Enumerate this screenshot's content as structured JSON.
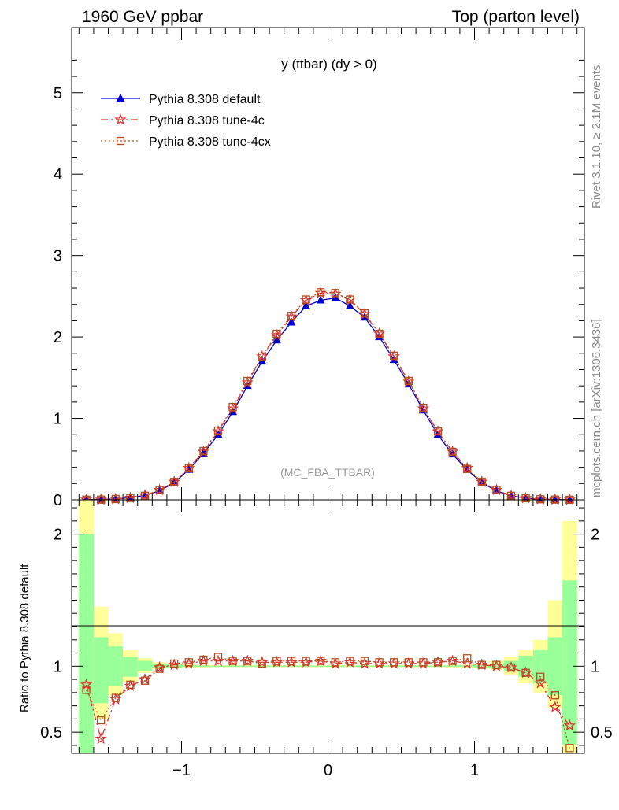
{
  "header": {
    "left": "1960 GeV ppbar",
    "right": "Top (parton level)"
  },
  "side": {
    "rivet": "Rivet 3.1.10, ≥ 2.1M events",
    "mcplots": "mcplots.cern.ch [arXiv:1306.3436]"
  },
  "chart_data": [
    {
      "type": "line",
      "title": "y (ttbar) (dy > 0)",
      "watermark": "(MC_FBA_TTBAR)",
      "xlim": [
        -1.75,
        1.75
      ],
      "ylim": [
        0,
        5.8
      ],
      "yticks": [
        "0",
        "1",
        "2",
        "3",
        "4",
        "5"
      ],
      "x": [
        -1.65,
        -1.55,
        -1.45,
        -1.35,
        -1.25,
        -1.15,
        -1.05,
        -0.95,
        -0.85,
        -0.75,
        -0.65,
        -0.55,
        -0.45,
        -0.35,
        -0.25,
        -0.15,
        -0.05,
        0.05,
        0.15,
        0.25,
        0.35,
        0.45,
        0.55,
        0.65,
        0.75,
        0.85,
        0.95,
        1.05,
        1.15,
        1.25,
        1.35,
        1.45,
        1.55,
        1.65
      ],
      "series": [
        {
          "name": "Pythia 8.308 default",
          "color": "#0000cc",
          "marker": "triangle",
          "values": [
            0.002,
            0.005,
            0.012,
            0.025,
            0.055,
            0.11,
            0.21,
            0.37,
            0.57,
            0.8,
            1.08,
            1.4,
            1.7,
            1.96,
            2.18,
            2.38,
            2.45,
            2.48,
            2.38,
            2.24,
            2.0,
            1.72,
            1.42,
            1.1,
            0.8,
            0.56,
            0.37,
            0.21,
            0.11,
            0.05,
            0.02,
            0.008,
            0.003,
            0.001
          ]
        },
        {
          "name": "Pythia 8.308 tune-4c",
          "color": "#e03030",
          "marker": "star",
          "values": [
            0.002,
            0.002,
            0.01,
            0.023,
            0.055,
            0.12,
            0.22,
            0.39,
            0.59,
            0.84,
            1.12,
            1.44,
            1.76,
            2.02,
            2.25,
            2.45,
            2.54,
            2.53,
            2.46,
            2.28,
            2.04,
            1.76,
            1.45,
            1.12,
            0.84,
            0.59,
            0.39,
            0.22,
            0.12,
            0.05,
            0.02,
            0.008,
            0.003,
            0.001
          ]
        },
        {
          "name": "Pythia 8.308 tune-4cx",
          "color": "#b05020",
          "marker": "square",
          "values": [
            0.002,
            0.003,
            0.01,
            0.023,
            0.05,
            0.12,
            0.22,
            0.39,
            0.6,
            0.85,
            1.14,
            1.46,
            1.76,
            2.04,
            2.26,
            2.46,
            2.55,
            2.54,
            2.46,
            2.29,
            2.04,
            1.77,
            1.46,
            1.13,
            0.84,
            0.59,
            0.38,
            0.22,
            0.12,
            0.05,
            0.02,
            0.007,
            0.003,
            0.001
          ]
        }
      ]
    },
    {
      "type": "line",
      "ylabel": "Ratio to Pythia 8.308 default",
      "xlim": [
        -1.75,
        1.75
      ],
      "ylim": [
        0.34,
        2.26
      ],
      "xticks": [
        "−1",
        "0",
        "1"
      ],
      "yticks": [
        "0.5",
        "1",
        "2"
      ],
      "x": [
        -1.65,
        -1.55,
        -1.45,
        -1.35,
        -1.25,
        -1.15,
        -1.05,
        -0.95,
        -0.85,
        -0.75,
        -0.65,
        -0.55,
        -0.45,
        -0.35,
        -0.25,
        -0.15,
        -0.05,
        0.05,
        0.15,
        0.25,
        0.35,
        0.45,
        0.55,
        0.65,
        0.75,
        0.85,
        0.95,
        1.05,
        1.15,
        1.25,
        1.35,
        1.45,
        1.55,
        1.65
      ],
      "band_yellow": [
        [
          0.2,
          2.6
        ],
        [
          0.6,
          1.45
        ],
        [
          0.78,
          1.25
        ],
        [
          0.88,
          1.12
        ],
        [
          0.95,
          1.06
        ],
        [
          0.98,
          1.03
        ],
        [
          0.985,
          1.02
        ],
        [
          0.99,
          1.015
        ],
        [
          0.99,
          1.01
        ],
        [
          0.993,
          1.008
        ],
        [
          0.993,
          1.008
        ],
        [
          0.993,
          1.008
        ],
        [
          0.993,
          1.008
        ],
        [
          0.993,
          1.008
        ],
        [
          0.993,
          1.008
        ],
        [
          0.993,
          1.008
        ],
        [
          0.993,
          1.008
        ],
        [
          0.993,
          1.008
        ],
        [
          0.993,
          1.008
        ],
        [
          0.993,
          1.008
        ],
        [
          0.993,
          1.008
        ],
        [
          0.993,
          1.008
        ],
        [
          0.993,
          1.008
        ],
        [
          0.993,
          1.008
        ],
        [
          0.993,
          1.008
        ],
        [
          0.99,
          1.01
        ],
        [
          0.99,
          1.012
        ],
        [
          0.985,
          1.02
        ],
        [
          0.975,
          1.04
        ],
        [
          0.93,
          1.07
        ],
        [
          0.87,
          1.12
        ],
        [
          0.8,
          1.2
        ],
        [
          0.68,
          1.5
        ],
        [
          0.3,
          2.1
        ]
      ],
      "band_green": [
        [
          0.25,
          2.0
        ],
        [
          0.72,
          1.22
        ],
        [
          0.85,
          1.15
        ],
        [
          0.92,
          1.07
        ],
        [
          0.96,
          1.04
        ],
        [
          0.985,
          1.02
        ],
        [
          0.99,
          1.012
        ],
        [
          0.993,
          1.008
        ],
        [
          0.995,
          1.006
        ],
        [
          0.995,
          1.005
        ],
        [
          0.995,
          1.005
        ],
        [
          0.995,
          1.005
        ],
        [
          0.995,
          1.005
        ],
        [
          0.995,
          1.005
        ],
        [
          0.995,
          1.005
        ],
        [
          0.995,
          1.005
        ],
        [
          0.995,
          1.005
        ],
        [
          0.995,
          1.005
        ],
        [
          0.995,
          1.005
        ],
        [
          0.995,
          1.005
        ],
        [
          0.995,
          1.005
        ],
        [
          0.995,
          1.005
        ],
        [
          0.995,
          1.005
        ],
        [
          0.995,
          1.005
        ],
        [
          0.995,
          1.005
        ],
        [
          0.995,
          1.006
        ],
        [
          0.993,
          1.008
        ],
        [
          0.99,
          1.012
        ],
        [
          0.985,
          1.02
        ],
        [
          0.96,
          1.04
        ],
        [
          0.92,
          1.08
        ],
        [
          0.87,
          1.12
        ],
        [
          0.78,
          1.22
        ],
        [
          0.4,
          1.65
        ]
      ],
      "series": [
        {
          "name": "Pythia 8.308 tune-4c",
          "color": "#e03030",
          "marker": "star",
          "values": [
            0.86,
            0.45,
            0.75,
            0.85,
            0.9,
            0.99,
            1.01,
            1.02,
            1.04,
            1.04,
            1.04,
            1.04,
            1.03,
            1.03,
            1.03,
            1.03,
            1.04,
            1.02,
            1.03,
            1.02,
            1.02,
            1.02,
            1.02,
            1.02,
            1.03,
            1.04,
            1.02,
            1.01,
            1.0,
            0.99,
            0.95,
            0.87,
            0.69,
            0.55
          ]
        },
        {
          "name": "Pythia 8.308 tune-4cx",
          "color": "#b05020",
          "marker": "square",
          "values": [
            0.82,
            0.59,
            0.76,
            0.86,
            0.89,
            0.98,
            1.02,
            1.03,
            1.05,
            1.07,
            1.04,
            1.04,
            1.02,
            1.04,
            1.04,
            1.04,
            1.04,
            1.03,
            1.04,
            1.04,
            1.03,
            1.03,
            1.03,
            1.03,
            1.03,
            1.04,
            1.06,
            1.01,
            1.01,
            0.99,
            0.95,
            0.92,
            0.78,
            0.38
          ]
        }
      ]
    }
  ]
}
